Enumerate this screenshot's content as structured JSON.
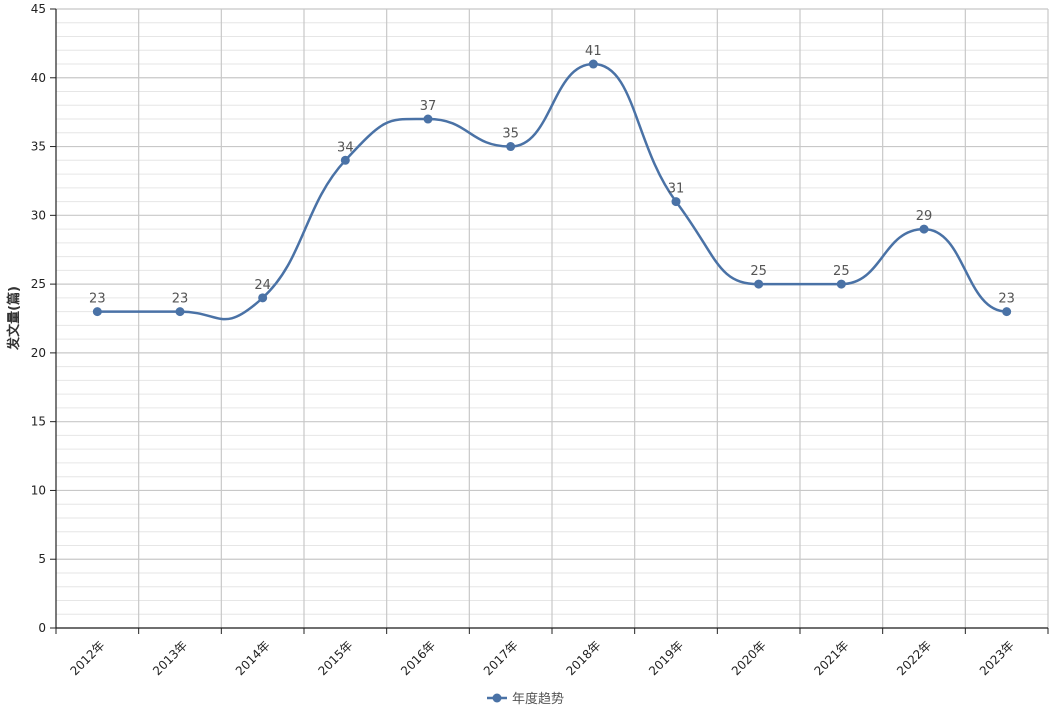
{
  "chart_data": {
    "type": "line",
    "categories": [
      "2012年",
      "2013年",
      "2014年",
      "2015年",
      "2016年",
      "2017年",
      "2018年",
      "2019年",
      "2020年",
      "2021年",
      "2022年",
      "2023年"
    ],
    "series": [
      {
        "name": "年度趋势",
        "values": [
          23,
          23,
          24,
          34,
          37,
          35,
          41,
          31,
          25,
          25,
          29,
          23
        ],
        "color": "#4a72a6"
      }
    ],
    "title": "",
    "xlabel": "",
    "ylabel": "发文量(篇)",
    "ylim": [
      0,
      45
    ],
    "yticks": [
      0,
      5,
      10,
      15,
      20,
      25,
      30,
      35,
      40,
      45
    ],
    "smooth": true,
    "data_labels": true,
    "grid": true,
    "legend": "bottom-center"
  }
}
